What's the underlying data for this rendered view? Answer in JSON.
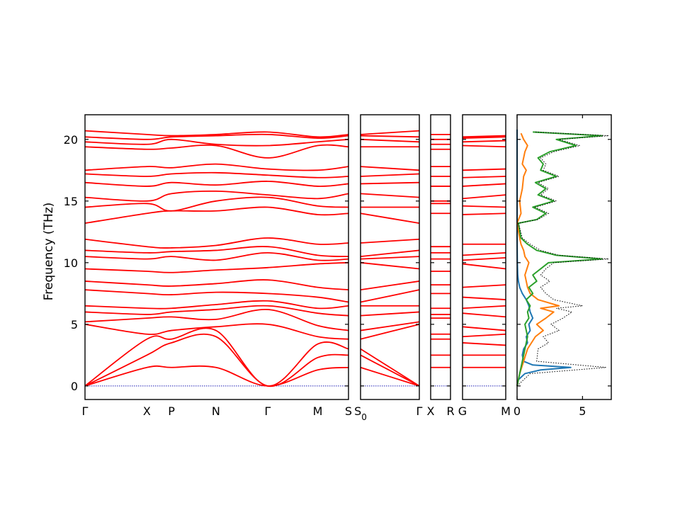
{
  "chart_data": {
    "type": "line",
    "title": "",
    "ylabel": "Frequency (THz)",
    "ylim": [
      -1.1,
      22
    ],
    "yticks": [
      0,
      5,
      10,
      15,
      20
    ],
    "panels": [
      {
        "name": "band-panel-1",
        "xticks": [
          {
            "label": "Γ",
            "pos": 0.0
          },
          {
            "label": "X",
            "pos": 0.235
          },
          {
            "label": "P",
            "pos": 0.328
          },
          {
            "label": "N",
            "pos": 0.497
          },
          {
            "label": "Γ",
            "pos": 0.693
          },
          {
            "label": "M",
            "pos": 0.883
          },
          {
            "label": "S",
            "pos": 1.0
          }
        ],
        "branch_freqs_at_ticks": [
          [
            0,
            1.5,
            1.5,
            1.5,
            0,
            1.3,
            1.5
          ],
          [
            0,
            2.5,
            3.5,
            4.0,
            0,
            2.3,
            2.5
          ],
          [
            0,
            3.8,
            3.8,
            4.5,
            0,
            3.4,
            3.0
          ],
          [
            5.0,
            4.2,
            4.5,
            4.8,
            5.0,
            4.0,
            3.8
          ],
          [
            5.2,
            5.5,
            5.6,
            5.4,
            6.2,
            4.9,
            4.5
          ],
          [
            6.0,
            5.8,
            6.0,
            6.2,
            6.5,
            5.9,
            5.7
          ],
          [
            6.5,
            6.3,
            6.3,
            6.6,
            6.9,
            6.3,
            6.5
          ],
          [
            7.8,
            7.5,
            7.4,
            7.6,
            7.5,
            7.2,
            6.8
          ],
          [
            8.5,
            8.2,
            8.1,
            8.3,
            8.6,
            8.0,
            7.8
          ],
          [
            9.5,
            9.3,
            9.2,
            9.4,
            9.6,
            9.9,
            10.0
          ],
          [
            10.5,
            10.3,
            10.5,
            10.2,
            10.8,
            10.2,
            10.3
          ],
          [
            11.0,
            10.8,
            10.9,
            11.0,
            11.3,
            10.6,
            10.5
          ],
          [
            11.9,
            11.3,
            11.2,
            11.4,
            12.0,
            11.5,
            11.6
          ],
          [
            13.2,
            14.0,
            14.2,
            14.2,
            14.5,
            13.9,
            14.0
          ],
          [
            14.5,
            14.8,
            14.2,
            15.0,
            15.3,
            14.6,
            14.5
          ],
          [
            15.3,
            15.0,
            15.6,
            15.8,
            15.5,
            15.2,
            15.6
          ],
          [
            16.5,
            16.2,
            16.5,
            16.3,
            16.6,
            16.2,
            16.4
          ],
          [
            17.2,
            17.0,
            17.2,
            17.3,
            17.1,
            16.9,
            17.0
          ],
          [
            17.5,
            17.8,
            17.7,
            18.0,
            17.6,
            17.5,
            17.8
          ],
          [
            19.4,
            19.2,
            19.3,
            19.5,
            18.5,
            19.5,
            19.4
          ],
          [
            19.8,
            19.6,
            20.0,
            19.6,
            19.5,
            19.8,
            20.0
          ],
          [
            20.2,
            20.0,
            20.2,
            20.3,
            20.4,
            20.1,
            20.3
          ],
          [
            20.7,
            20.4,
            20.3,
            20.4,
            20.6,
            20.2,
            20.4
          ]
        ]
      },
      {
        "name": "band-panel-2",
        "xticks": [
          {
            "label": "S",
            "pos": 0.0,
            "sub": "0"
          },
          {
            "label": "Γ",
            "pos": 1.0
          }
        ],
        "branch_freqs_at_ticks": [
          [
            1.5,
            0
          ],
          [
            2.5,
            0
          ],
          [
            3.0,
            0
          ],
          [
            3.8,
            5.0
          ],
          [
            4.5,
            5.2
          ],
          [
            5.7,
            6.0
          ],
          [
            6.5,
            6.5
          ],
          [
            6.8,
            7.8
          ],
          [
            7.8,
            8.5
          ],
          [
            10.0,
            9.5
          ],
          [
            10.3,
            10.5
          ],
          [
            10.5,
            11.0
          ],
          [
            11.6,
            11.9
          ],
          [
            14.0,
            13.2
          ],
          [
            14.5,
            14.5
          ],
          [
            15.6,
            15.3
          ],
          [
            16.4,
            16.5
          ],
          [
            17.0,
            17.2
          ],
          [
            17.8,
            17.5
          ],
          [
            19.4,
            19.4
          ],
          [
            20.0,
            19.8
          ],
          [
            20.3,
            20.2
          ],
          [
            20.4,
            20.7
          ]
        ]
      },
      {
        "name": "band-panel-3",
        "xticks": [
          {
            "label": "X",
            "pos": 0.0
          },
          {
            "label": "R",
            "pos": 1.0
          }
        ],
        "branch_freqs_at_ticks": [
          [
            1.5,
            1.5
          ],
          [
            2.5,
            2.5
          ],
          [
            3.8,
            3.8
          ],
          [
            4.2,
            4.2
          ],
          [
            5.5,
            5.5
          ],
          [
            5.8,
            5.8
          ],
          [
            6.3,
            6.3
          ],
          [
            7.5,
            7.5
          ],
          [
            8.2,
            8.2
          ],
          [
            9.3,
            9.3
          ],
          [
            10.3,
            10.3
          ],
          [
            10.8,
            10.8
          ],
          [
            11.3,
            11.3
          ],
          [
            14.0,
            14.0
          ],
          [
            14.8,
            14.8
          ],
          [
            15.0,
            15.0
          ],
          [
            16.2,
            16.2
          ],
          [
            17.0,
            17.0
          ],
          [
            17.8,
            17.8
          ],
          [
            19.2,
            19.2
          ],
          [
            19.6,
            19.6
          ],
          [
            20.0,
            20.0
          ],
          [
            20.4,
            20.4
          ]
        ]
      },
      {
        "name": "band-panel-4",
        "xticks": [
          {
            "label": "G",
            "pos": 0.0
          },
          {
            "label": "M",
            "pos": 1.0
          }
        ],
        "branch_freqs_at_ticks": [
          [
            1.5,
            1.5
          ],
          [
            2.5,
            2.5
          ],
          [
            3.5,
            3.3
          ],
          [
            4.0,
            4.2
          ],
          [
            4.8,
            4.5
          ],
          [
            5.9,
            5.6
          ],
          [
            6.3,
            6.5
          ],
          [
            7.2,
            7.0
          ],
          [
            8.0,
            8.2
          ],
          [
            9.9,
            9.5
          ],
          [
            10.2,
            10.4
          ],
          [
            10.6,
            10.8
          ],
          [
            11.5,
            11.5
          ],
          [
            13.9,
            14.0
          ],
          [
            14.6,
            14.5
          ],
          [
            15.2,
            15.5
          ],
          [
            16.2,
            16.4
          ],
          [
            16.9,
            17.0
          ],
          [
            17.5,
            17.6
          ],
          [
            19.5,
            19.4
          ],
          [
            19.8,
            19.9
          ],
          [
            20.1,
            20.2
          ],
          [
            20.2,
            20.3
          ]
        ]
      }
    ],
    "dos": {
      "xlim": [
        0,
        7.2
      ],
      "xticks": [
        0,
        5
      ],
      "series": [
        {
          "color": "#1f77b4",
          "freq": [
            0,
            0.5,
            1.0,
            1.3,
            1.5,
            1.7,
            2.0,
            2.5,
            3.0,
            3.5,
            4.0,
            4.5,
            5.0,
            5.5,
            6.0,
            6.5,
            7.0,
            7.5,
            8.0,
            8.5,
            9.0,
            10.0,
            12.0,
            20.8
          ],
          "dos": [
            0,
            0.1,
            0.6,
            1.8,
            4.1,
            1.2,
            0.5,
            0.4,
            0.5,
            0.8,
            0.7,
            1.0,
            0.9,
            1.2,
            1.0,
            0.9,
            0.7,
            0.4,
            0.2,
            0.1,
            0.05,
            0.02,
            0,
            0
          ]
        },
        {
          "color": "#ff7f0e",
          "freq": [
            0,
            1.0,
            2.0,
            3.0,
            4.0,
            4.5,
            5.0,
            5.5,
            6.0,
            6.3,
            6.5,
            7.0,
            7.5,
            8.0,
            9.0,
            10.0,
            10.5,
            11.0,
            11.5,
            12.0,
            13.2,
            14.0,
            15.0,
            16.0,
            17.0,
            17.5,
            18.0,
            19.0,
            19.5,
            20.0,
            20.5
          ],
          "dos": [
            0,
            0.2,
            0.5,
            0.8,
            1.4,
            2.0,
            1.5,
            2.2,
            2.8,
            1.8,
            3.2,
            1.6,
            1.0,
            0.8,
            0.6,
            0.9,
            0.6,
            0.5,
            0.3,
            0.2,
            0,
            0.3,
            0.2,
            0.4,
            0.5,
            0.7,
            0.4,
            0.6,
            0.8,
            0.5,
            0.3
          ]
        },
        {
          "color": "#2ca02c",
          "freq": [
            0,
            1.0,
            2.0,
            3.0,
            4.0,
            5.0,
            5.5,
            6.0,
            6.5,
            7.0,
            7.5,
            8.0,
            8.5,
            9.0,
            9.5,
            10.0,
            10.3,
            10.6,
            11.0,
            11.5,
            12.0,
            13.2,
            13.5,
            14.0,
            14.5,
            15.0,
            15.5,
            16.0,
            16.5,
            17.0,
            17.5,
            18.0,
            18.5,
            19.0,
            19.5,
            20.0,
            20.3,
            20.6
          ],
          "dos": [
            0,
            0.2,
            0.4,
            0.6,
            0.8,
            0.6,
            0.9,
            0.8,
            1.0,
            0.7,
            1.2,
            0.9,
            1.5,
            1.2,
            1.8,
            2.4,
            6.5,
            3.0,
            1.5,
            0.8,
            0.3,
            0.1,
            1.5,
            2.2,
            1.2,
            2.8,
            1.6,
            2.2,
            1.4,
            3.0,
            1.8,
            2.0,
            1.6,
            2.5,
            4.5,
            3.0,
            6.5,
            1.2
          ]
        },
        {
          "color": "#000000",
          "freq": [
            0,
            1.0,
            1.5,
            2.0,
            3.0,
            3.5,
            4.0,
            4.5,
            5.0,
            5.5,
            6.0,
            6.3,
            6.5,
            7.0,
            7.5,
            8.0,
            8.5,
            9.0,
            9.5,
            10.0,
            10.3,
            10.6,
            11.0,
            11.5,
            12.0,
            13.2,
            13.5,
            14.0,
            14.5,
            15.0,
            15.5,
            16.0,
            16.5,
            17.0,
            17.5,
            18.0,
            18.5,
            19.0,
            19.5,
            20.0,
            20.3,
            20.6
          ],
          "dos": [
            0,
            1.0,
            6.8,
            1.5,
            1.6,
            2.4,
            2.0,
            3.2,
            2.6,
            3.5,
            4.2,
            3.0,
            5.0,
            2.8,
            2.2,
            1.8,
            2.5,
            1.8,
            2.2,
            2.8,
            7.0,
            3.2,
            1.8,
            1.0,
            0.4,
            0.1,
            1.6,
            2.4,
            1.4,
            3.0,
            1.8,
            2.4,
            1.6,
            3.2,
            2.0,
            2.2,
            1.8,
            2.8,
            4.8,
            3.2,
            7.0,
            1.4
          ]
        }
      ]
    }
  }
}
